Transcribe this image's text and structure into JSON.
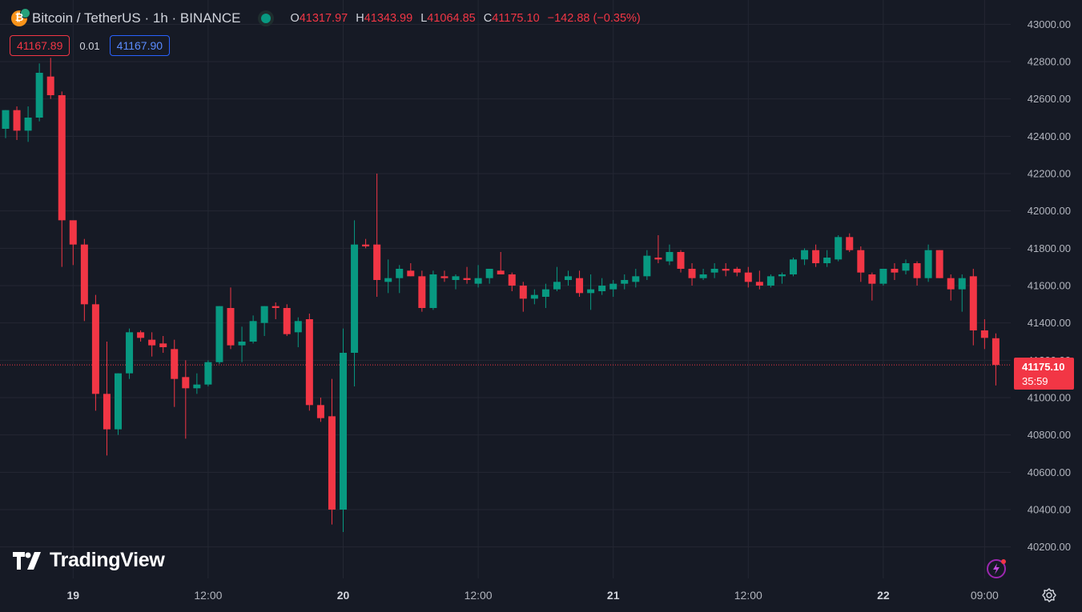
{
  "header": {
    "symbol": "Bitcoin / TetherUS · 1h · BINANCE",
    "open_label": "O",
    "open": "41317.97",
    "high_label": "H",
    "high": "41343.99",
    "low_label": "L",
    "low": "41064.85",
    "close_label": "C",
    "close": "41175.10",
    "change": "−142.88 (−0.35%)"
  },
  "bidask": {
    "sell": "41167.89",
    "spread": "0.01",
    "buy": "41167.90"
  },
  "price_tag": {
    "price": "41175.10",
    "countdown": "35:59"
  },
  "brand": "TradingView",
  "colors": {
    "background": "#161a25",
    "up": "#089981",
    "down": "#f23645",
    "grid": "#242733",
    "text": "#b2b5be"
  },
  "chart_data": {
    "type": "candlestick",
    "title": "Bitcoin / TetherUS · 1h · BINANCE",
    "y_axis": {
      "min": 40100,
      "max": 43100,
      "ticks": [
        43000,
        42800,
        42600,
        42400,
        42200,
        42000,
        41800,
        41600,
        41400,
        41200,
        41000,
        40800,
        40600,
        40400,
        40200
      ],
      "position": "right"
    },
    "x_axis": {
      "labels": [
        {
          "label": "19",
          "index": 6
        },
        {
          "label": "12:00",
          "index": 18
        },
        {
          "label": "20",
          "index": 30
        },
        {
          "label": "12:00",
          "index": 42
        },
        {
          "label": "21",
          "index": 54
        },
        {
          "label": "12:00",
          "index": 66
        },
        {
          "label": "22",
          "index": 78
        },
        {
          "label": "09:00",
          "index": 87
        }
      ]
    },
    "grid": true,
    "last_price": 41175.1,
    "candles": [
      [
        42440,
        42540,
        42390,
        42540
      ],
      [
        42540,
        42560,
        42380,
        42430
      ],
      [
        42430,
        42560,
        42370,
        42500
      ],
      [
        42500,
        42790,
        42480,
        42740
      ],
      [
        42720,
        42820,
        42600,
        42620
      ],
      [
        42620,
        42640,
        41700,
        41950
      ],
      [
        41950,
        41930,
        41710,
        41820
      ],
      [
        41820,
        41850,
        41410,
        41500
      ],
      [
        41500,
        41550,
        40930,
        41020
      ],
      [
        41020,
        41300,
        40690,
        40830
      ],
      [
        40830,
        41130,
        40800,
        41130
      ],
      [
        41130,
        41370,
        41100,
        41350
      ],
      [
        41350,
        41360,
        41300,
        41320
      ],
      [
        41310,
        41350,
        41220,
        41280
      ],
      [
        41290,
        41330,
        41240,
        41270
      ],
      [
        41260,
        41310,
        40950,
        41100
      ],
      [
        41110,
        41200,
        40780,
        41050
      ],
      [
        41050,
        41130,
        41020,
        41070
      ],
      [
        41070,
        41200,
        41060,
        41190
      ],
      [
        41190,
        41490,
        41180,
        41490
      ],
      [
        41480,
        41590,
        41260,
        41280
      ],
      [
        41280,
        41380,
        41190,
        41300
      ],
      [
        41300,
        41440,
        41290,
        41410
      ],
      [
        41400,
        41490,
        41330,
        41490
      ],
      [
        41490,
        41510,
        41420,
        41480
      ],
      [
        41480,
        41500,
        41330,
        41340
      ],
      [
        41350,
        41430,
        41270,
        41410
      ],
      [
        41420,
        41450,
        40930,
        40960
      ],
      [
        40960,
        41000,
        40870,
        40890
      ],
      [
        40900,
        41100,
        40320,
        40400
      ],
      [
        40400,
        41370,
        40280,
        41240
      ],
      [
        41240,
        41950,
        41060,
        41820
      ],
      [
        41820,
        41850,
        41800,
        41810
      ],
      [
        41820,
        42200,
        41540,
        41630
      ],
      [
        41620,
        41740,
        41560,
        41640
      ],
      [
        41640,
        41710,
        41560,
        41690
      ],
      [
        41680,
        41720,
        41650,
        41650
      ],
      [
        41650,
        41680,
        41460,
        41480
      ],
      [
        41480,
        41680,
        41470,
        41660
      ],
      [
        41650,
        41680,
        41620,
        41640
      ],
      [
        41630,
        41660,
        41580,
        41650
      ],
      [
        41640,
        41700,
        41610,
        41630
      ],
      [
        41610,
        41710,
        41590,
        41640
      ],
      [
        41640,
        41690,
        41610,
        41690
      ],
      [
        41680,
        41780,
        41660,
        41660
      ],
      [
        41660,
        41670,
        41570,
        41600
      ],
      [
        41600,
        41620,
        41460,
        41530
      ],
      [
        41530,
        41580,
        41500,
        41550
      ],
      [
        41540,
        41610,
        41480,
        41580
      ],
      [
        41580,
        41700,
        41570,
        41620
      ],
      [
        41630,
        41680,
        41600,
        41650
      ],
      [
        41640,
        41680,
        41540,
        41560
      ],
      [
        41560,
        41660,
        41470,
        41580
      ],
      [
        41570,
        41640,
        41550,
        41600
      ],
      [
        41580,
        41630,
        41540,
        41610
      ],
      [
        41610,
        41660,
        41580,
        41630
      ],
      [
        41620,
        41690,
        41590,
        41650
      ],
      [
        41650,
        41790,
        41630,
        41760
      ],
      [
        41750,
        41870,
        41720,
        41740
      ],
      [
        41730,
        41820,
        41710,
        41780
      ],
      [
        41780,
        41790,
        41670,
        41690
      ],
      [
        41690,
        41720,
        41600,
        41640
      ],
      [
        41640,
        41690,
        41630,
        41660
      ],
      [
        41670,
        41720,
        41640,
        41690
      ],
      [
        41690,
        41720,
        41650,
        41680
      ],
      [
        41690,
        41700,
        41650,
        41670
      ],
      [
        41670,
        41700,
        41590,
        41620
      ],
      [
        41620,
        41680,
        41580,
        41600
      ],
      [
        41600,
        41660,
        41590,
        41650
      ],
      [
        41650,
        41670,
        41610,
        41660
      ],
      [
        41660,
        41750,
        41650,
        41740
      ],
      [
        41740,
        41800,
        41710,
        41790
      ],
      [
        41790,
        41820,
        41700,
        41720
      ],
      [
        41720,
        41790,
        41700,
        41750
      ],
      [
        41740,
        41870,
        41730,
        41860
      ],
      [
        41860,
        41880,
        41780,
        41790
      ],
      [
        41790,
        41810,
        41620,
        41670
      ],
      [
        41660,
        41670,
        41520,
        41610
      ],
      [
        41610,
        41680,
        41600,
        41690
      ],
      [
        41690,
        41720,
        41630,
        41670
      ],
      [
        41680,
        41740,
        41660,
        41720
      ],
      [
        41720,
        41730,
        41600,
        41640
      ],
      [
        41640,
        41820,
        41620,
        41790
      ],
      [
        41790,
        41790,
        41640,
        41640
      ],
      [
        41640,
        41660,
        41520,
        41580
      ],
      [
        41580,
        41660,
        41460,
        41640
      ],
      [
        41650,
        41690,
        41280,
        41360
      ],
      [
        41360,
        41420,
        41260,
        41320
      ],
      [
        41318,
        41344,
        41065,
        41175
      ]
    ]
  }
}
